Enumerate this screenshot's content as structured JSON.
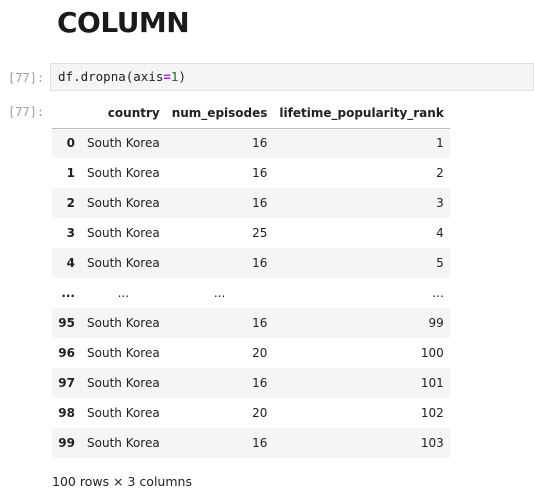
{
  "heading": "COLUMN",
  "cell": {
    "in_prompt": "[77]:",
    "out_prompt": "[77]:",
    "code": {
      "obj": "df",
      "dot": ".",
      "method": "dropna",
      "open": "(",
      "kw": "axis",
      "eq": "=",
      "num": "1",
      "close": ")"
    }
  },
  "table": {
    "columns": [
      "",
      "country",
      "num_episodes",
      "lifetime_popularity_rank"
    ],
    "rows": [
      {
        "index": "0",
        "country": "South Korea",
        "num_episodes": "16",
        "rank": "1"
      },
      {
        "index": "1",
        "country": "South Korea",
        "num_episodes": "16",
        "rank": "2"
      },
      {
        "index": "2",
        "country": "South Korea",
        "num_episodes": "16",
        "rank": "3"
      },
      {
        "index": "3",
        "country": "South Korea",
        "num_episodes": "25",
        "rank": "4"
      },
      {
        "index": "4",
        "country": "South Korea",
        "num_episodes": "16",
        "rank": "5"
      },
      {
        "index": "...",
        "country": "...",
        "num_episodes": "...",
        "rank": "..."
      },
      {
        "index": "95",
        "country": "South Korea",
        "num_episodes": "16",
        "rank": "99"
      },
      {
        "index": "96",
        "country": "South Korea",
        "num_episodes": "20",
        "rank": "100"
      },
      {
        "index": "97",
        "country": "South Korea",
        "num_episodes": "16",
        "rank": "101"
      },
      {
        "index": "98",
        "country": "South Korea",
        "num_episodes": "20",
        "rank": "102"
      },
      {
        "index": "99",
        "country": "South Korea",
        "num_episodes": "16",
        "rank": "103"
      }
    ]
  },
  "shape_text": "100 rows × 3 columns"
}
